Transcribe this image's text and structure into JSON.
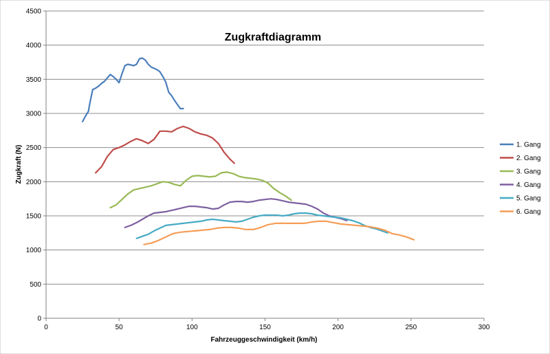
{
  "chart_data": {
    "type": "line",
    "title": "Zugkraftdiagramm",
    "xlabel": "Fahrzeuggeschwindigkeit (km/h)",
    "ylabel": "Zugkraft (N)",
    "xlim": [
      0,
      300
    ],
    "ylim": [
      0,
      4500
    ],
    "x_ticks": [
      "0",
      "50",
      "100",
      "150",
      "200",
      "250",
      "300"
    ],
    "y_ticks": [
      "0",
      "500",
      "1000",
      "1500",
      "2000",
      "2500",
      "3000",
      "3500",
      "4000",
      "4500"
    ],
    "grid": true,
    "legend_position": "right",
    "series": [
      {
        "name": "1. Gang",
        "color": "#4a7ebb",
        "x": [
          25,
          27,
          29,
          30,
          32,
          34,
          36,
          38,
          40,
          42,
          44,
          46,
          48,
          50,
          52,
          54,
          56,
          58,
          60,
          62,
          64,
          66,
          68,
          70,
          72,
          74,
          76,
          78,
          80,
          82,
          84,
          86,
          88,
          90,
          92,
          94
        ],
        "y": [
          2880,
          2960,
          3030,
          3150,
          3350,
          3370,
          3400,
          3440,
          3470,
          3520,
          3570,
          3540,
          3500,
          3450,
          3580,
          3700,
          3720,
          3710,
          3700,
          3720,
          3800,
          3810,
          3780,
          3720,
          3680,
          3660,
          3640,
          3610,
          3540,
          3460,
          3310,
          3260,
          3190,
          3130,
          3070,
          3070
        ]
      },
      {
        "name": "2. Gang",
        "color": "#be4b48",
        "x": [
          34,
          38,
          42,
          46,
          50,
          54,
          58,
          62,
          66,
          70,
          74,
          78,
          82,
          86,
          90,
          94,
          98,
          102,
          106,
          110,
          114,
          118,
          122,
          126,
          129
        ],
        "y": [
          2130,
          2220,
          2370,
          2470,
          2500,
          2540,
          2590,
          2630,
          2600,
          2560,
          2620,
          2740,
          2740,
          2730,
          2780,
          2810,
          2780,
          2730,
          2700,
          2680,
          2640,
          2560,
          2430,
          2330,
          2270
        ]
      },
      {
        "name": "3. Gang",
        "color": "#98b954",
        "x": [
          44,
          48,
          52,
          56,
          60,
          64,
          68,
          72,
          76,
          80,
          84,
          88,
          92,
          96,
          100,
          104,
          108,
          112,
          116,
          120,
          124,
          128,
          132,
          136,
          140,
          144,
          148,
          152,
          156,
          160,
          164,
          168
        ],
        "y": [
          1620,
          1660,
          1740,
          1820,
          1880,
          1900,
          1920,
          1940,
          1970,
          2000,
          1990,
          1960,
          1940,
          2020,
          2080,
          2090,
          2080,
          2070,
          2080,
          2130,
          2140,
          2120,
          2080,
          2060,
          2050,
          2040,
          2020,
          1980,
          1900,
          1840,
          1790,
          1730
        ]
      },
      {
        "name": "4. Gang",
        "color": "#7d5fa0",
        "x": [
          54,
          58,
          62,
          66,
          70,
          74,
          78,
          82,
          86,
          90,
          94,
          98,
          102,
          106,
          110,
          114,
          118,
          122,
          126,
          130,
          134,
          138,
          142,
          146,
          150,
          154,
          158,
          162,
          166,
          170,
          174,
          178,
          182,
          186,
          190,
          194,
          198,
          202,
          206
        ],
        "y": [
          1330,
          1360,
          1400,
          1450,
          1500,
          1540,
          1550,
          1560,
          1580,
          1600,
          1620,
          1640,
          1640,
          1630,
          1620,
          1600,
          1610,
          1660,
          1700,
          1710,
          1710,
          1700,
          1710,
          1730,
          1740,
          1750,
          1740,
          1720,
          1700,
          1690,
          1680,
          1670,
          1640,
          1600,
          1540,
          1500,
          1480,
          1460,
          1430
        ]
      },
      {
        "name": "5. Gang",
        "color": "#46aac4",
        "x": [
          62,
          66,
          70,
          74,
          78,
          82,
          86,
          90,
          94,
          98,
          102,
          106,
          110,
          114,
          118,
          122,
          126,
          130,
          134,
          138,
          142,
          146,
          150,
          154,
          158,
          162,
          166,
          170,
          174,
          178,
          182,
          186,
          190,
          194,
          198,
          202,
          206,
          210,
          214,
          218,
          222,
          226,
          230,
          234
        ],
        "y": [
          1170,
          1200,
          1230,
          1280,
          1320,
          1360,
          1370,
          1380,
          1390,
          1400,
          1410,
          1420,
          1440,
          1450,
          1440,
          1430,
          1420,
          1410,
          1420,
          1450,
          1480,
          1500,
          1510,
          1510,
          1510,
          1500,
          1510,
          1530,
          1540,
          1540,
          1530,
          1510,
          1500,
          1490,
          1480,
          1470,
          1450,
          1430,
          1400,
          1360,
          1330,
          1310,
          1280,
          1250
        ]
      },
      {
        "name": "6. Gang",
        "color": "#f59d56",
        "x": [
          67,
          72,
          77,
          82,
          87,
          92,
          97,
          102,
          107,
          112,
          117,
          122,
          127,
          132,
          137,
          142,
          147,
          152,
          157,
          162,
          167,
          172,
          177,
          182,
          187,
          192,
          197,
          202,
          207,
          212,
          217,
          222,
          227,
          232,
          237,
          242,
          247,
          252
        ],
        "y": [
          1080,
          1100,
          1140,
          1190,
          1240,
          1260,
          1270,
          1280,
          1290,
          1300,
          1320,
          1330,
          1330,
          1320,
          1300,
          1300,
          1330,
          1370,
          1390,
          1390,
          1390,
          1390,
          1390,
          1410,
          1420,
          1420,
          1400,
          1380,
          1370,
          1360,
          1350,
          1340,
          1320,
          1290,
          1240,
          1220,
          1190,
          1150
        ]
      }
    ]
  }
}
